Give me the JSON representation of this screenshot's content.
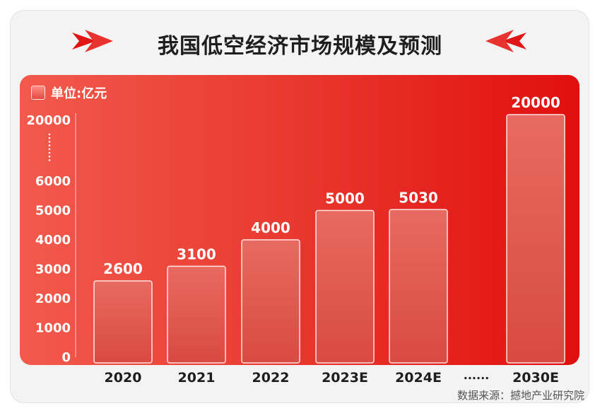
{
  "title": "我国低空经济市场规模及预测",
  "unit_label": "单位:亿元",
  "source": "数据来源：撼地产业研究院",
  "watermark": "撼地产业研究院",
  "colors": {
    "panel": "#e93b31",
    "bar": "#e55a51",
    "title": "#1e1e1e"
  },
  "chart_data": {
    "type": "bar",
    "title": "我国低空经济市场规模及预测",
    "unit": "单位:亿元",
    "categories": [
      "2020",
      "2021",
      "2022",
      "2023E",
      "2024E",
      "2030E"
    ],
    "values": [
      2600,
      3100,
      4000,
      5000,
      5030,
      20000
    ],
    "data_labels": [
      "2600",
      "3100",
      "4000",
      "5000",
      "5030",
      "20000"
    ],
    "y_ticks": [
      "0",
      "1000",
      "2000",
      "3000",
      "4000",
      "5000",
      "6000",
      "20000"
    ],
    "axis_break": "······",
    "ylim": [
      0,
      20000
    ],
    "grid": false
  }
}
